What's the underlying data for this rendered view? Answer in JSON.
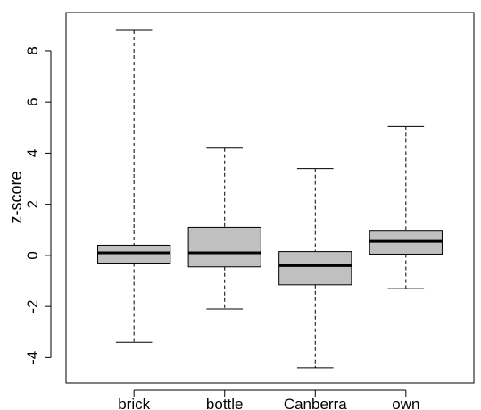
{
  "chart_data": {
    "type": "box",
    "title": "",
    "xlabel": "",
    "ylabel": "z-score",
    "ylim": [
      -5.0,
      9.5
    ],
    "yticks": [
      -4,
      -2,
      0,
      2,
      4,
      6,
      8
    ],
    "ytick_labels": [
      "-4",
      "-2",
      "0",
      "2",
      "4",
      "6",
      "8"
    ],
    "categories": [
      "brick",
      "bottle",
      "Canberra",
      "own"
    ],
    "boxes": [
      {
        "label": "brick",
        "whisker_low": -3.4,
        "q1": -0.3,
        "median": 0.1,
        "q3": 0.4,
        "whisker_high": 8.8
      },
      {
        "label": "bottle",
        "whisker_low": -2.1,
        "q1": -0.45,
        "median": 0.1,
        "q3": 1.1,
        "whisker_high": 4.2
      },
      {
        "label": "Canberra",
        "whisker_low": -4.4,
        "q1": -1.15,
        "median": -0.4,
        "q3": 0.15,
        "whisker_high": 3.4
      },
      {
        "label": "own",
        "whisker_low": -1.3,
        "q1": 0.05,
        "median": 0.55,
        "q3": 0.95,
        "whisker_high": 5.05
      }
    ],
    "box_fill": "#c0c0c0",
    "line_color": "#000000",
    "grid": false,
    "legend": false
  }
}
